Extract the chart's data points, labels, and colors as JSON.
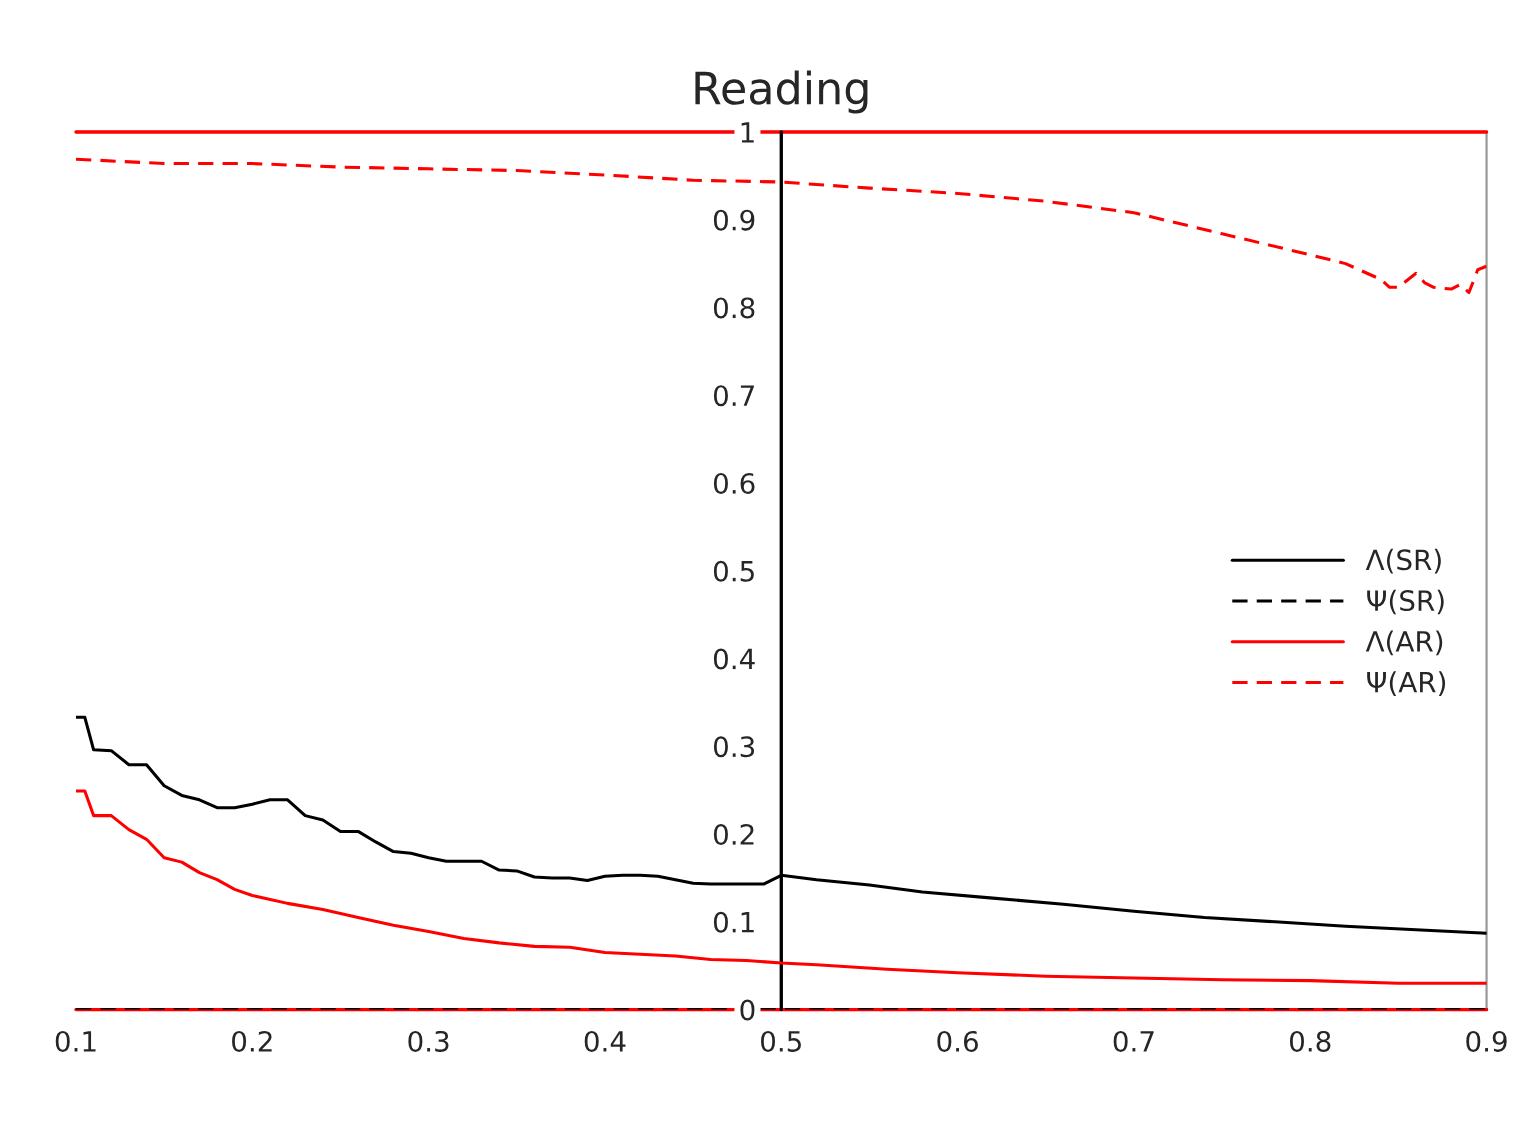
{
  "chart_data": {
    "type": "line",
    "title": "Reading",
    "xlim": [
      0.1,
      0.9
    ],
    "xticks": [
      0.1,
      0.2,
      0.3,
      0.4,
      0.5,
      0.6,
      0.7,
      0.8,
      0.9
    ],
    "ylim": [
      0,
      1
    ],
    "yticks": [
      0,
      0.1,
      0.2,
      0.3,
      0.4,
      0.5,
      0.6,
      0.7,
      0.8,
      0.9,
      1
    ],
    "grid": false,
    "legend": "right",
    "marker": "none",
    "ref_lines": [
      {
        "axis": "y",
        "value": 1,
        "color": "#ff0000",
        "line_style": "solid"
      },
      {
        "axis": "y",
        "value": 0,
        "color": "#ff0000",
        "line_style": "solid"
      },
      {
        "axis": "x",
        "value": 0.5,
        "color": "#000000",
        "line_style": "solid"
      }
    ],
    "series": [
      {
        "name": "Λ(SR)",
        "color": "#000000",
        "line_style": "solid",
        "x": [
          0.1,
          0.105,
          0.11,
          0.12,
          0.13,
          0.14,
          0.15,
          0.16,
          0.17,
          0.18,
          0.19,
          0.2,
          0.21,
          0.22,
          0.23,
          0.24,
          0.25,
          0.26,
          0.27,
          0.28,
          0.29,
          0.3,
          0.31,
          0.32,
          0.33,
          0.34,
          0.35,
          0.36,
          0.37,
          0.38,
          0.39,
          0.4,
          0.41,
          0.42,
          0.43,
          0.44,
          0.45,
          0.46,
          0.47,
          0.48,
          0.49,
          0.5,
          0.52,
          0.55,
          0.58,
          0.62,
          0.66,
          0.7,
          0.74,
          0.78,
          0.82,
          0.86,
          0.9
        ],
        "values": [
          0.333,
          0.333,
          0.296,
          0.295,
          0.279,
          0.279,
          0.255,
          0.244,
          0.239,
          0.23,
          0.23,
          0.234,
          0.239,
          0.239,
          0.221,
          0.216,
          0.203,
          0.203,
          0.191,
          0.18,
          0.178,
          0.173,
          0.169,
          0.169,
          0.169,
          0.159,
          0.158,
          0.151,
          0.15,
          0.15,
          0.147,
          0.152,
          0.153,
          0.153,
          0.152,
          0.148,
          0.144,
          0.143,
          0.143,
          0.143,
          0.143,
          0.153,
          0.148,
          0.142,
          0.134,
          0.127,
          0.12,
          0.112,
          0.105,
          0.1,
          0.095,
          0.091,
          0.087
        ]
      },
      {
        "name": "Ψ(SR)",
        "color": "#000000",
        "line_style": "dashed",
        "x": [
          0.1,
          0.3,
          0.5,
          0.7,
          0.9
        ],
        "values": [
          0,
          0,
          0,
          0,
          0
        ]
      },
      {
        "name": "Λ(AR)",
        "color": "#ff0000",
        "line_style": "solid",
        "x": [
          0.1,
          0.105,
          0.11,
          0.12,
          0.13,
          0.14,
          0.15,
          0.16,
          0.17,
          0.18,
          0.19,
          0.2,
          0.22,
          0.24,
          0.26,
          0.28,
          0.3,
          0.32,
          0.34,
          0.36,
          0.38,
          0.4,
          0.42,
          0.44,
          0.46,
          0.48,
          0.5,
          0.52,
          0.56,
          0.6,
          0.65,
          0.7,
          0.75,
          0.8,
          0.85,
          0.9
        ],
        "values": [
          0.249,
          0.249,
          0.221,
          0.221,
          0.205,
          0.194,
          0.173,
          0.168,
          0.156,
          0.148,
          0.137,
          0.13,
          0.121,
          0.114,
          0.105,
          0.096,
          0.089,
          0.081,
          0.076,
          0.072,
          0.071,
          0.065,
          0.063,
          0.061,
          0.057,
          0.056,
          0.053,
          0.051,
          0.046,
          0.042,
          0.038,
          0.036,
          0.034,
          0.033,
          0.03,
          0.03
        ]
      },
      {
        "name": "Ψ(AR)",
        "color": "#ff0000",
        "line_style": "dashed",
        "x": [
          0.1,
          0.15,
          0.2,
          0.25,
          0.3,
          0.35,
          0.4,
          0.45,
          0.5,
          0.55,
          0.6,
          0.65,
          0.7,
          0.75,
          0.8,
          0.82,
          0.84,
          0.845,
          0.85,
          0.86,
          0.865,
          0.87,
          0.88,
          0.885,
          0.89,
          0.895,
          0.9
        ],
        "values": [
          0.969,
          0.964,
          0.964,
          0.96,
          0.958,
          0.956,
          0.951,
          0.945,
          0.943,
          0.936,
          0.93,
          0.921,
          0.908,
          0.884,
          0.86,
          0.85,
          0.832,
          0.823,
          0.823,
          0.839,
          0.828,
          0.823,
          0.821,
          0.826,
          0.817,
          0.843,
          0.847
        ]
      }
    ]
  }
}
